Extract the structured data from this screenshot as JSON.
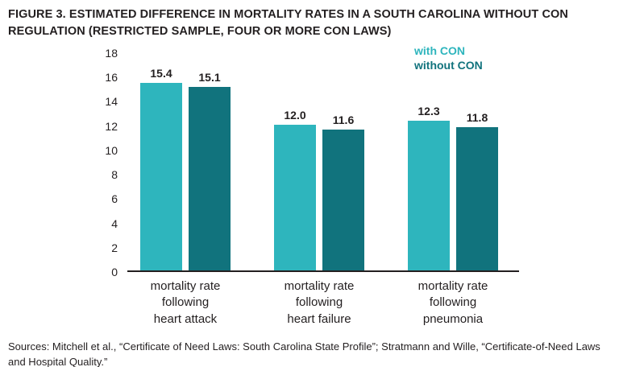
{
  "title": "FIGURE 3. ESTIMATED DIFFERENCE IN MORTALITY RATES IN A SOUTH CAROLINA WITHOUT CON REGULATION (RESTRICTED SAMPLE, FOUR OR MORE CON LAWS)",
  "source": "Sources: Mitchell et al., “Certificate of Need Laws: South Carolina State Profile”; Stratmann and Wille, “Certificate-of-Need Laws and Hospital Quality.”",
  "colors": {
    "with_con": "#2eb5bd",
    "without_con": "#11737d",
    "axis": "#231f20",
    "text": "#231f20"
  },
  "chart_data": {
    "type": "bar",
    "title": "FIGURE 3. ESTIMATED DIFFERENCE IN MORTALITY RATES IN A SOUTH CAROLINA WITHOUT CON REGULATION (RESTRICTED SAMPLE, FOUR OR MORE CON LAWS)",
    "categories": [
      "mortality rate\nfollowing\nheart attack",
      "mortality rate\nfollowing\nheart failure",
      "mortality rate\nfollowing\npneumonia"
    ],
    "series": [
      {
        "name": "with CON",
        "color": "#2eb5bd",
        "values": [
          15.4,
          12.0,
          12.3
        ]
      },
      {
        "name": "without CON",
        "color": "#11737d",
        "values": [
          15.1,
          11.6,
          11.8
        ]
      }
    ],
    "xlabel": "",
    "ylabel": "",
    "ylim": [
      0,
      18
    ],
    "yticks": [
      0,
      2,
      4,
      6,
      8,
      10,
      12,
      14,
      16,
      18
    ],
    "grid": false,
    "legend_position": "top-right",
    "value_labels_decimals": 1
  }
}
